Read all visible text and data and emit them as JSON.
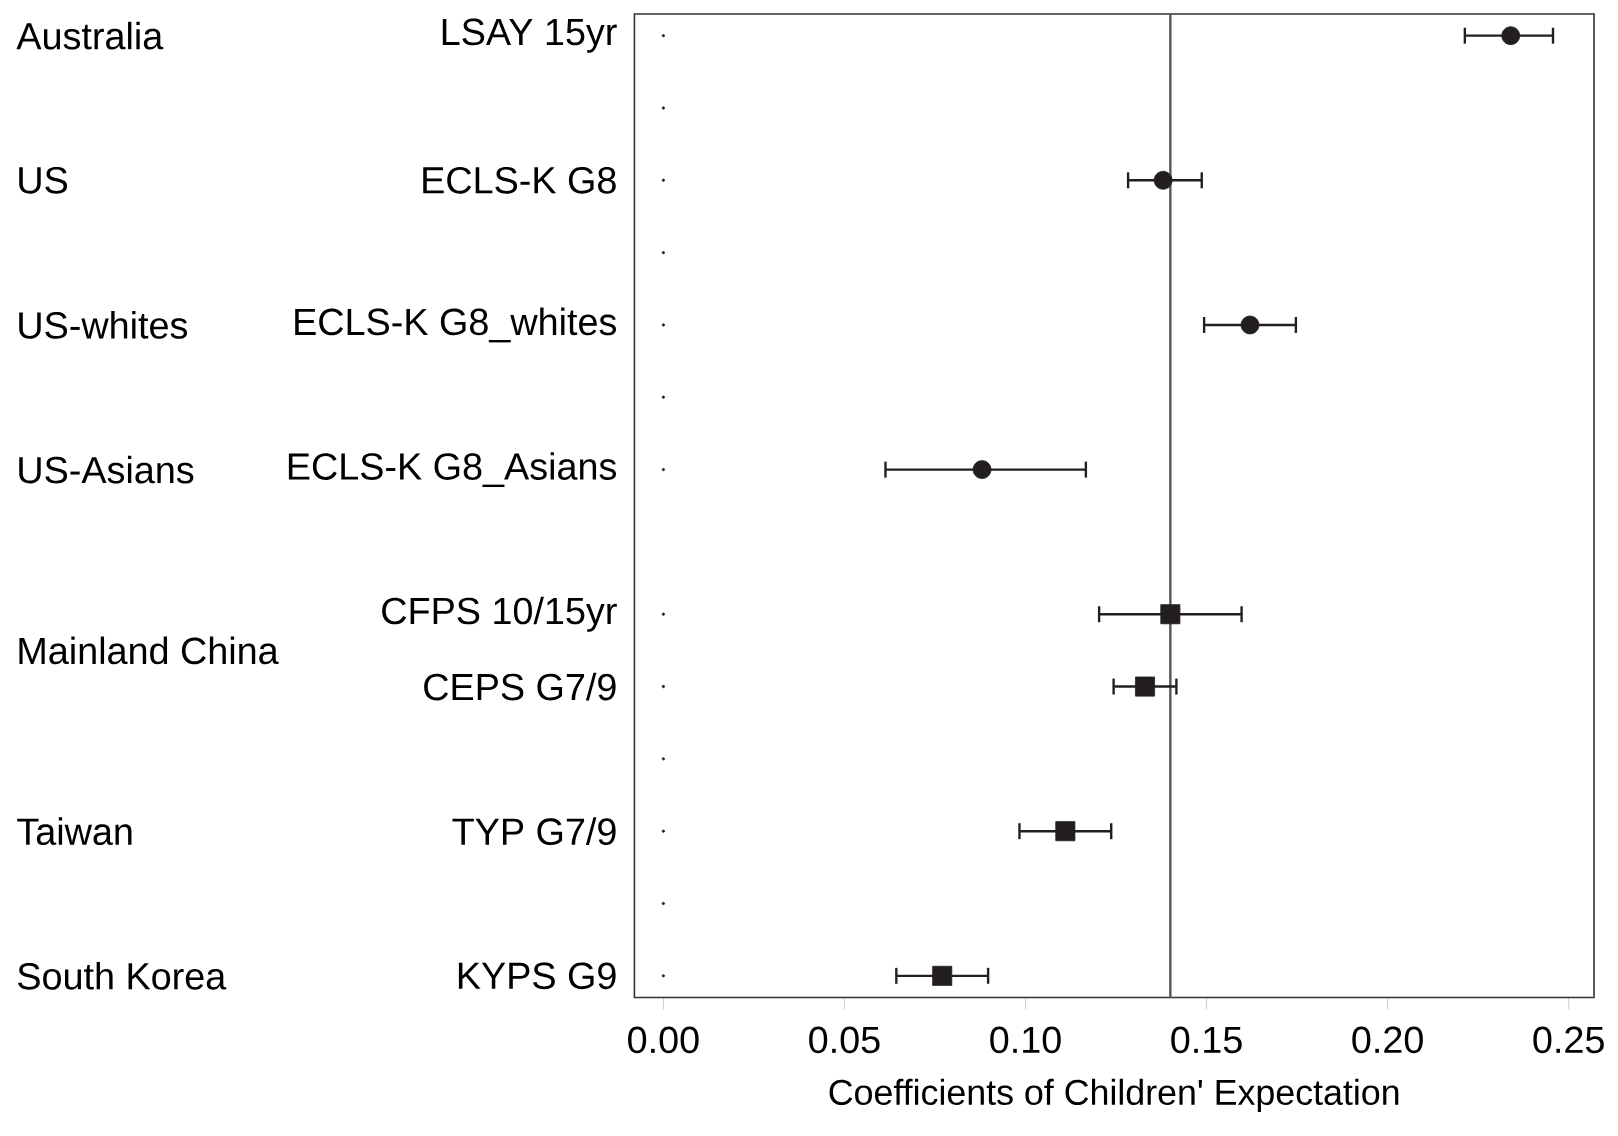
{
  "chart_data": {
    "type": "scatter",
    "orientation": "horizontal",
    "xlabel": "Coefficients of Children' Expectation",
    "categories": [
      "LSAY 15yr",
      null,
      "ECLS-K G8",
      null,
      "ECLS-K G8_whites",
      null,
      "ECLS-K G8_Asians",
      null,
      "CFPS 10/15yr",
      "CEPS G7/9",
      null,
      "TYP G7/9",
      null,
      "KYPS G9"
    ],
    "series": [
      {
        "color": "#231f20",
        "marker": "circle",
        "values": [
          0.234,
          null,
          0.138,
          null,
          0.162,
          null,
          0.088,
          null,
          null,
          null,
          null,
          null,
          null,
          null
        ],
        "errors": [
          [
            0.221,
            0.246
          ],
          null,
          [
            0.128,
            0.149
          ],
          null,
          [
            0.149,
            0.175
          ],
          null,
          [
            0.061,
            0.117
          ],
          null,
          null,
          null,
          null,
          null,
          null,
          null
        ]
      },
      {
        "color": "#231f20",
        "marker": "square",
        "values": [
          null,
          null,
          null,
          null,
          null,
          null,
          null,
          null,
          0.14,
          0.133,
          null,
          0.111,
          null,
          0.077
        ],
        "errors": [
          null,
          null,
          null,
          null,
          null,
          null,
          null,
          null,
          [
            0.12,
            0.16
          ],
          [
            0.124,
            0.142
          ],
          null,
          [
            0.098,
            0.124
          ],
          null,
          [
            0.064,
            0.09
          ]
        ]
      },
      {
        "color": "#231f20",
        "marker": "dot",
        "values": [
          0,
          0,
          0,
          0,
          0,
          0,
          0,
          null,
          0,
          0,
          0,
          0,
          0,
          0
        ]
      }
    ],
    "xlim": [
      -0.008,
      0.257
    ],
    "xticks": [
      {
        "value": 0,
        "label": "0.00"
      },
      0.05,
      {
        "value": 0.1,
        "label": "0.10"
      },
      0.15,
      {
        "value": 0.2,
        "label": "0.20"
      },
      0.25
    ],
    "ref_lines": [
      {
        "axis": "x",
        "value": 0.14,
        "color": "#555555"
      }
    ],
    "annotations": [
      "Australia",
      "US",
      "US-whites",
      "US-Asians",
      "Mainland China",
      "Taiwan",
      "South Korea"
    ],
    "grid": false
  }
}
